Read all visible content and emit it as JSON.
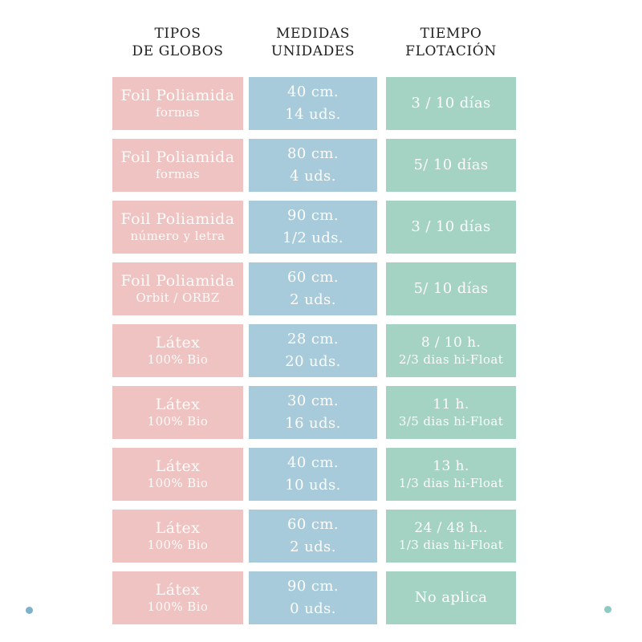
{
  "page": {
    "background": "#ffffff"
  },
  "headers": {
    "tipos": "TIPOS\nDE GLOBOS",
    "medidas": "MEDIDAS\nUNIDADES",
    "tiempo": "TIEMPO\nFLOTACIÓN"
  },
  "colors": {
    "pink_cell": "#efc3c1",
    "blue_cell": "#a7cbda",
    "green_cell": "#a5d3c3",
    "header_text": "#212121",
    "cell_text": "#fefcfb",
    "dot_left": "#7eb2ca",
    "dot_right": "#8ccac2"
  },
  "rows": [
    {
      "t1": "Foil Poliamida",
      "t2": "formas",
      "m1": "40 cm.",
      "m2": "14 uds.",
      "f1": "3 / 10 días",
      "f2": ""
    },
    {
      "t1": "Foil Poliamida",
      "t2": "formas",
      "m1": "80 cm.",
      "m2": "4 uds.",
      "f1": "5/ 10 días",
      "f2": ""
    },
    {
      "t1": "Foil Poliamida",
      "t2": "número y letra",
      "m1": "90 cm.",
      "m2": "1/2 uds.",
      "f1": "3 / 10 días",
      "f2": ""
    },
    {
      "t1": "Foil Poliamida",
      "t2": "Orbit / ORBZ",
      "m1": "60 cm.",
      "m2": "2 uds.",
      "f1": "5/ 10 días",
      "f2": ""
    },
    {
      "t1": "Látex",
      "t2": "100% Bio",
      "m1": "28 cm.",
      "m2": "20 uds.",
      "f1": "8 / 10 h.",
      "f2": "2/3 dias hi-Float"
    },
    {
      "t1": "Látex",
      "t2": "100% Bio",
      "m1": "30 cm.",
      "m2": "16 uds.",
      "f1": "11 h.",
      "f2": "3/5 dias hi-Float"
    },
    {
      "t1": "Látex",
      "t2": "100% Bio",
      "m1": "40 cm.",
      "m2": "10 uds.",
      "f1": "13 h.",
      "f2": "1/3 dias hi-Float"
    },
    {
      "t1": "Látex",
      "t2": "100% Bio",
      "m1": "60 cm.",
      "m2": "2 uds.",
      "f1": "24 / 48 h..",
      "f2": "1/3 dias hi-Float"
    },
    {
      "t1": "Látex",
      "t2": "100% Bio",
      "m1": "90 cm.",
      "m2": "0 uds.",
      "f1": "No aplica",
      "f2": ""
    }
  ],
  "chart_data": {
    "type": "table",
    "title": "Tabla de globos: tipos, medidas y tiempo de flotación",
    "columns": [
      "TIPOS DE GLOBOS",
      "MEDIDAS UNIDADES",
      "TIEMPO FLOTACIÓN"
    ],
    "rows": [
      [
        "Foil Poliamida formas",
        "40 cm. 14 uds.",
        "3 / 10 días"
      ],
      [
        "Foil Poliamida formas",
        "80 cm. 4 uds.",
        "5/ 10 días"
      ],
      [
        "Foil Poliamida número y letra",
        "90 cm. 1/2 uds.",
        "3 / 10 días"
      ],
      [
        "Foil Poliamida Orbit / ORBZ",
        "60 cm. 2 uds.",
        "5/ 10 días"
      ],
      [
        "Látex 100% Bio",
        "28 cm. 20 uds.",
        "8 / 10 h. 2/3 dias hi-Float"
      ],
      [
        "Látex 100% Bio",
        "30 cm. 16 uds.",
        "11 h. 3/5 dias hi-Float"
      ],
      [
        "Látex 100% Bio",
        "40 cm. 10 uds.",
        "13 h. 1/3 dias hi-Float"
      ],
      [
        "Látex 100% Bio",
        "60 cm. 2 uds.",
        "24 / 48 h.. 1/3 dias hi-Float"
      ],
      [
        "Látex 100% Bio",
        "90 cm. 0 uds.",
        "No aplica"
      ]
    ],
    "layout_hints": {
      "column_colors": [
        "#efc3c1",
        "#a7cbda",
        "#a5d3c3"
      ],
      "grid": false,
      "legend": "none"
    }
  }
}
